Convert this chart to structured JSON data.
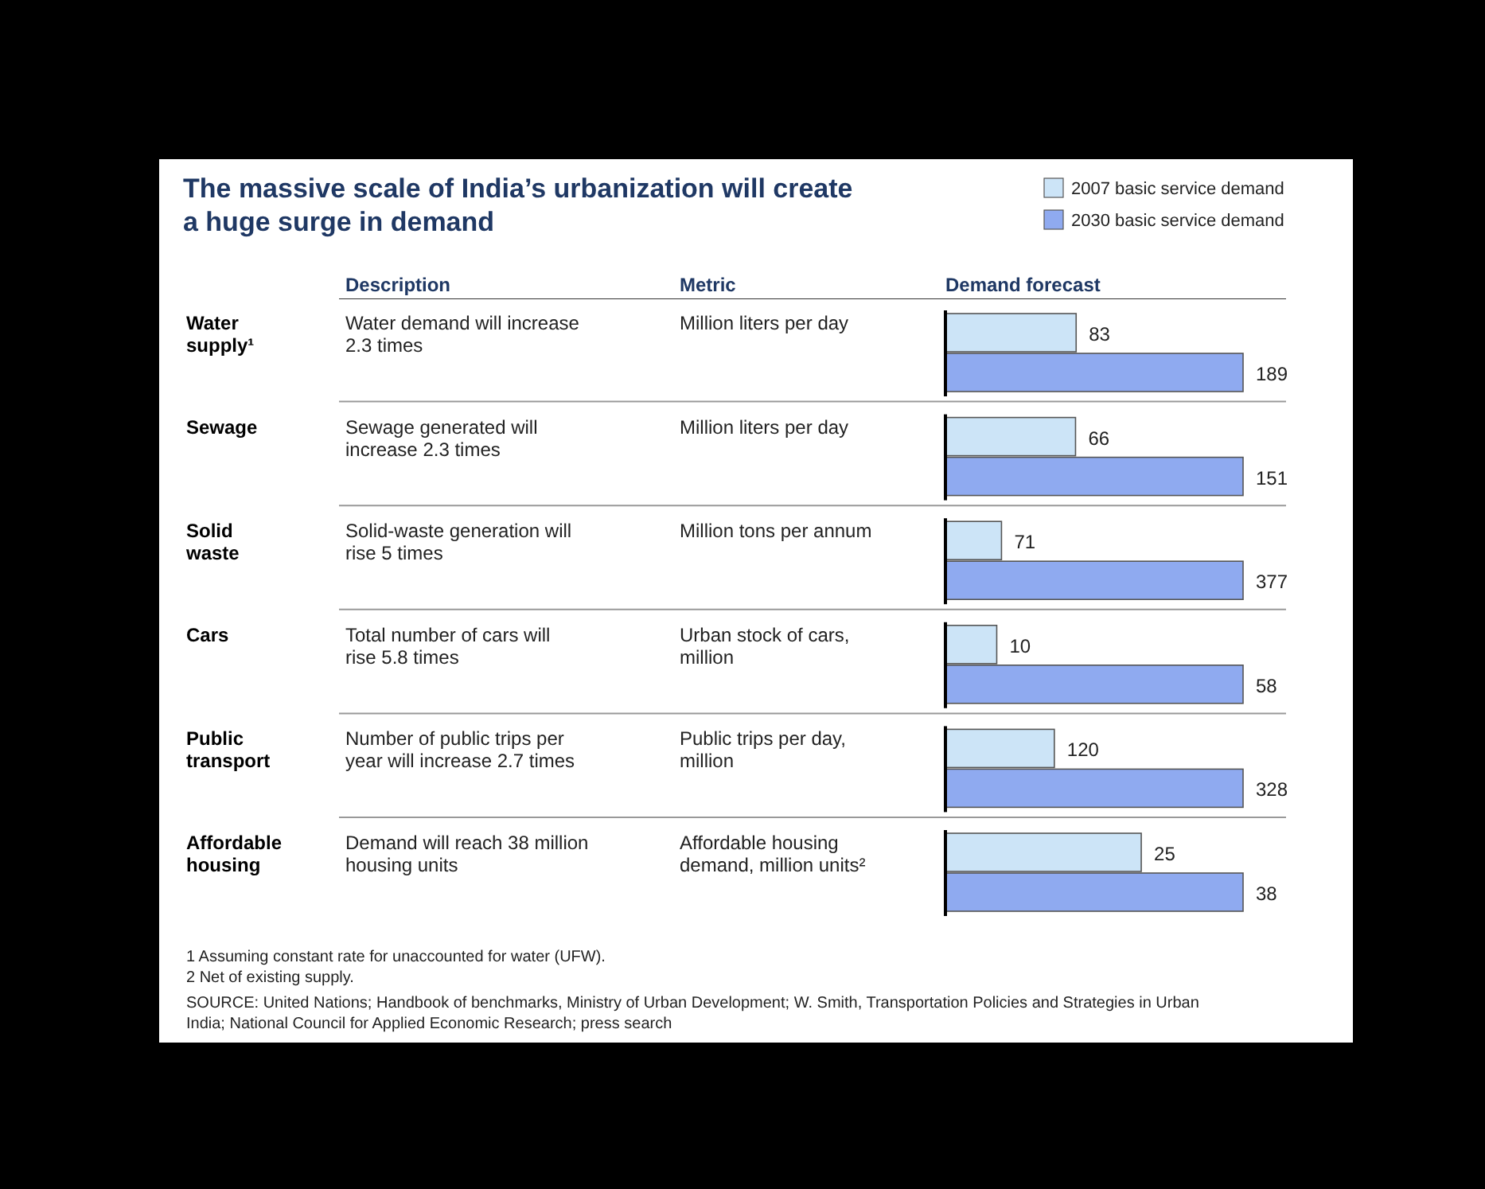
{
  "chart_data": [
    {
      "type": "other",
      "title": "The massive scale of India’s urbanization will create a huge surge in demand",
      "annotations": [
        "Description",
        "Metric",
        "Demand forecast"
      ]
    },
    {
      "type": "bar",
      "orientation": "horizontal",
      "annotations": [
        "Water demand will increase 2.3 times",
        "Million liters per day"
      ],
      "categories": [
        "Water supply¹"
      ],
      "legend": "top right",
      "data_labels": true,
      "series": [
        {
          "name": "2007 basic service demand",
          "color": "#cce4f7",
          "values": [
            83
          ]
        },
        {
          "name": "2030 basic service demand",
          "color": "#8faaf0",
          "values": [
            189
          ]
        }
      ]
    },
    {
      "type": "bar",
      "orientation": "horizontal",
      "annotations": [
        "Sewage generated will increase 2.3 times",
        "Million liters per day"
      ],
      "categories": [
        "Sewage"
      ],
      "data_labels": true,
      "series": [
        {
          "color": "#cce4f7",
          "values": [
            66
          ]
        },
        {
          "color": "#8faaf0",
          "values": [
            151
          ]
        }
      ]
    },
    {
      "type": "bar",
      "orientation": "horizontal",
      "annotations": [
        "Solid-waste generation will rise 5 times",
        "Million tons per annum"
      ],
      "categories": [
        "Solid waste"
      ],
      "data_labels": true,
      "series": [
        {
          "color": "#cce4f7",
          "values": [
            71
          ]
        },
        {
          "color": "#8faaf0",
          "values": [
            377
          ]
        }
      ]
    },
    {
      "type": "bar",
      "orientation": "horizontal",
      "annotations": [
        "Total number of cars will rise 5.8 times",
        "Urban stock of cars, million"
      ],
      "categories": [
        "Cars"
      ],
      "data_labels": true,
      "series": [
        {
          "color": "#cce4f7",
          "values": [
            10
          ]
        },
        {
          "color": "#8faaf0",
          "values": [
            58
          ]
        }
      ]
    },
    {
      "type": "bar",
      "orientation": "horizontal",
      "annotations": [
        "Number of public trips per year will increase 2.7 times",
        "Public trips per day, million"
      ],
      "categories": [
        "Public transport"
      ],
      "data_labels": true,
      "series": [
        {
          "color": "#cce4f7",
          "values": [
            120
          ]
        },
        {
          "color": "#8faaf0",
          "values": [
            328
          ]
        }
      ]
    },
    {
      "type": "bar",
      "orientation": "horizontal",
      "annotations": [
        "Demand will reach 38 million housing units",
        "Affordable housing demand, million units²"
      ],
      "categories": [
        "Affordable housing"
      ],
      "data_labels": true,
      "series": [
        {
          "color": "#cce4f7",
          "values": [
            25
          ]
        },
        {
          "color": "#8faaf0",
          "values": [
            38
          ]
        }
      ]
    },
    {
      "type": "other",
      "annotations": [
        "1 Assuming constant rate for unaccounted for water (UFW).",
        "2 Net of existing supply.",
        "SOURCE: United Nations; Handbook of benchmarks, Ministry of Urban Development; W. Smith, Transportation Policies and Strategies in Urban India; National Council for Applied Economic Research; press search"
      ]
    }
  ]
}
